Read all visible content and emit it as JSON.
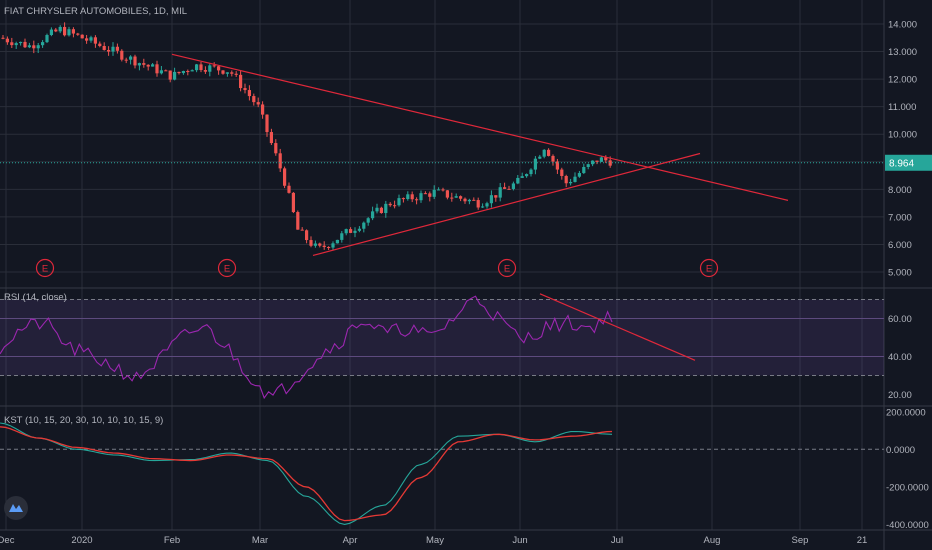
{
  "header": {
    "title": "FIAT CHRYSLER AUTOMOBILES, 1D, MIL",
    "price_tag": "8.964"
  },
  "rsi": {
    "label": "RSI (14, close)",
    "ticks": [
      "60.00",
      "40.00",
      "20.00"
    ]
  },
  "kst": {
    "label": "KST (10, 15, 20, 30, 10, 10, 10, 15, 9)",
    "ticks": [
      "200.0000",
      "0.0000",
      "-200.0000",
      "-400.0000"
    ]
  },
  "colors": {
    "bg": "#131722",
    "grid": "#2a2e39",
    "up": "#26a69a",
    "down": "#ef5350",
    "trendline": "#e0283a",
    "rsi_line": "#9c27b0",
    "rsi_band": "#7e57c2",
    "kst_line": "#26a69a",
    "kst_signal": "#e53935",
    "price_line": "#26a69a"
  },
  "earnings_markers": [
    "E",
    "E",
    "E",
    "E"
  ],
  "logo": "tradingview-logo",
  "chart_data": [
    {
      "type": "candlestick",
      "title": "FIAT CHRYSLER AUTOMOBILES, 1D, MIL",
      "x_ticks": [
        "Dec",
        "2020",
        "Feb",
        "Mar",
        "Apr",
        "May",
        "Jun",
        "Jul",
        "Aug",
        "Sep",
        "21"
      ],
      "y_ticks": [
        "14.000",
        "13.000",
        "12.000",
        "11.000",
        "10.000",
        "9.000",
        "8.000",
        "7.000",
        "6.000",
        "5.000"
      ],
      "ylim": [
        5.0,
        14.0
      ],
      "last_price": 8.964,
      "price_anchors": [
        [
          "Dec",
          13.5
        ],
        [
          "Dec 10",
          13.2
        ],
        [
          "Dec 20",
          13.8
        ],
        [
          "2020",
          13.5
        ],
        [
          "Jan 15",
          12.9
        ],
        [
          "Feb",
          12.1
        ],
        [
          "Feb 7",
          12.5
        ],
        [
          "Feb 20",
          12.3
        ],
        [
          "Mar",
          11.0
        ],
        [
          "Mar 10",
          8.5
        ],
        [
          "Mar 15",
          6.5
        ],
        [
          "Mar 25",
          5.8
        ],
        [
          "Apr",
          6.5
        ],
        [
          "Apr 15",
          7.5
        ],
        [
          "May",
          7.9
        ],
        [
          "May 20",
          7.5
        ],
        [
          "Jun",
          8.3
        ],
        [
          "Jun 8",
          9.6
        ],
        [
          "Jun 15",
          8.2
        ],
        [
          "Jun 25",
          9.1
        ],
        [
          "Jul",
          9.0
        ]
      ],
      "trendlines": [
        {
          "from": [
            "Feb",
            12.9
          ],
          "to": [
            "Sep",
            7.6
          ]
        },
        {
          "from": [
            "Mar 20",
            5.6
          ],
          "to": [
            "Aug",
            9.3
          ]
        }
      ]
    },
    {
      "type": "line",
      "title": "RSI (14, close)",
      "y_ticks": [
        "60.00",
        "40.00",
        "20.00"
      ],
      "ylim": [
        15,
        75
      ],
      "bands": [
        70,
        30
      ],
      "values_approx": [
        45,
        55,
        58,
        45,
        40,
        35,
        28,
        38,
        50,
        56,
        45,
        30,
        18,
        28,
        40,
        48,
        60,
        52,
        55,
        50,
        60,
        72,
        60,
        48,
        55,
        58,
        55,
        62
      ]
    },
    {
      "type": "line",
      "title": "KST (10, 15, 20, 30, 10, 10, 10, 15, 9)",
      "y_ticks": [
        "200.0000",
        "0.0000",
        "-200.0000",
        "-400.0000"
      ],
      "ylim": [
        -430,
        220
      ],
      "series": [
        {
          "values_approx": [
            140,
            60,
            0,
            -30,
            -60,
            -55,
            -20,
            -60,
            -250,
            -400,
            -300,
            -80,
            70,
            80,
            40,
            95,
            80
          ]
        },
        {
          "values_approx": [
            120,
            60,
            10,
            -20,
            -50,
            -60,
            -30,
            -50,
            -200,
            -380,
            -350,
            -150,
            40,
            80,
            50,
            70,
            95
          ]
        }
      ]
    }
  ]
}
